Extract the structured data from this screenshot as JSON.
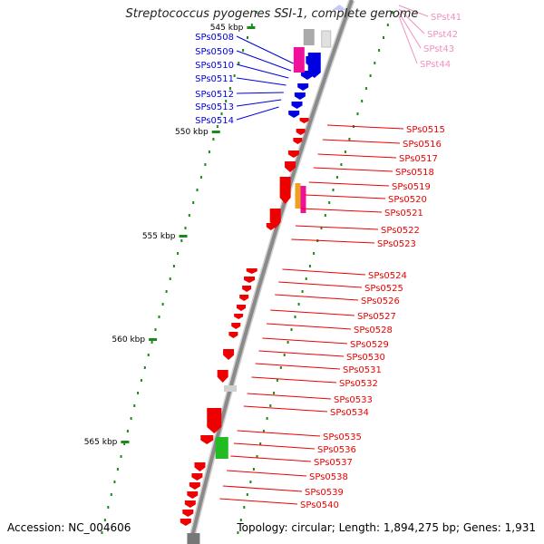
{
  "title": "Streptococcus pyogenes SSI-1, complete genome",
  "accession": "Accession: NC_004606",
  "summary": "Topology: circular; Length: 1,894,275 bp; Genes: 1,931",
  "colors": {
    "blue_genes": "#0000e0",
    "red_genes": "#ee0000",
    "trna_pink": "#f090c0",
    "backbone": "#8a8a8a",
    "ticks": "#1a8a1a",
    "magenta": "#ee1199",
    "orange": "#f0a020",
    "green": "#22bb22",
    "grey": "#aaaaaa"
  },
  "scale_labels": [
    "545 kbp",
    "550 kbp",
    "555 kbp",
    "560 kbp",
    "565 kbp"
  ],
  "blue_labels": [
    "SPs0508",
    "SPs0509",
    "SPs0510",
    "SPs0511",
    "SPs0512",
    "SPs0513",
    "SPs0514"
  ],
  "pink_labels": [
    "SPst41",
    "SPst42",
    "SPst43",
    "SPst44"
  ],
  "red_labels": [
    "SPs0515",
    "SPs0516",
    "SPs0517",
    "SPs0518",
    "SPs0519",
    "SPs0520",
    "SPs0521",
    "SPs0522",
    "SPs0523",
    "SPs0524",
    "SPs0525",
    "SPs0526",
    "SPs0527",
    "SPs0528",
    "SPs0529",
    "SPs0530",
    "SPs0531",
    "SPs0532",
    "SPs0533",
    "SPs0534",
    "SPs0535",
    "SPs0536",
    "SPs0537",
    "SPs0538",
    "SPs0539",
    "SPs0540"
  ]
}
